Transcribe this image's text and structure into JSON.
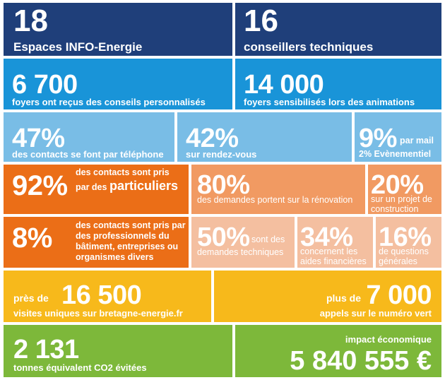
{
  "colors": {
    "navy": "#1f3f7a",
    "blue": "#1994d8",
    "lightblue": "#79bde6",
    "orange": "#eb6e17",
    "lightorange": "#f19a62",
    "peach": "#f4bfa0",
    "yellow": "#f7b91b",
    "green": "#7db83a"
  },
  "row1": {
    "left": {
      "value": "18",
      "label": "Espaces INFO-Energie"
    },
    "right": {
      "value": "16",
      "label": "conseillers techniques"
    }
  },
  "row2": {
    "left": {
      "value": "6 700",
      "label": "foyers ont reçus des conseils personnalisés"
    },
    "right": {
      "value": "14 000",
      "label": "foyers sensibilisés lors des animations"
    }
  },
  "row3": {
    "a": {
      "value": "47%",
      "label": "des contacts se font par téléphone"
    },
    "b": {
      "value": "42%",
      "label": "sur rendez-vous"
    },
    "c": {
      "value": "9%",
      "suffix": "par mail",
      "label": "2% Evènementiel"
    }
  },
  "row4": {
    "a": {
      "value": "92%",
      "line1": "des contacts sont pris",
      "line2_prefix": "par des",
      "line2_emph": "particuliers"
    },
    "b": {
      "value": "80%",
      "label": "des demandes portent sur la rénovation"
    },
    "c": {
      "value": "20%",
      "label": "sur un projet de construction"
    }
  },
  "row5": {
    "a": {
      "value": "8%",
      "label": "des contacts sont pris par des professionnels du bâtiment, entreprises ou organismes divers"
    },
    "b": {
      "value": "50%",
      "label_inline": "sont des",
      "label": "demandes techniques"
    },
    "c": {
      "value": "34%",
      "label": "concernent les aides financières"
    },
    "d": {
      "value": "16%",
      "label": "de questions générales"
    }
  },
  "row6": {
    "left": {
      "prefix": "près de",
      "value": "16 500",
      "label": "visites uniques sur bretagne-energie.fr"
    },
    "right": {
      "prefix": "plus de",
      "value": "7 000",
      "label": "appels sur le numéro vert"
    }
  },
  "row7": {
    "left": {
      "value": "2 131",
      "label": "tonnes équivalent CO2 évitées"
    },
    "right": {
      "label": "impact économique",
      "value": "5 840 555 €"
    }
  }
}
